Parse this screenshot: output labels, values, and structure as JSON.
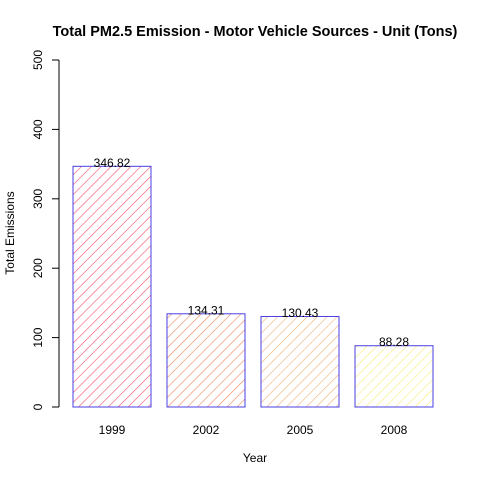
{
  "chart_data": {
    "type": "bar",
    "title": "Total PM2.5 Emission - Motor Vehicle Sources - Unit (Tons)",
    "xlabel": "Year",
    "ylabel": "Total Emissions",
    "categories": [
      "1999",
      "2002",
      "2005",
      "2008"
    ],
    "values": [
      346.82,
      134.31,
      130.43,
      88.28
    ],
    "data_labels": [
      "346.82",
      "134.31",
      "130.43",
      "88.28"
    ],
    "ylim": [
      0,
      500
    ],
    "yticks": [
      "0",
      "100",
      "200",
      "300",
      "400",
      "500"
    ],
    "bar_colors": [
      "#F0506A",
      "#EE8658",
      "#F0B070",
      "#F6EC78"
    ],
    "bar_border_color": "#4A3FE0",
    "grid": false,
    "legend": "none"
  }
}
